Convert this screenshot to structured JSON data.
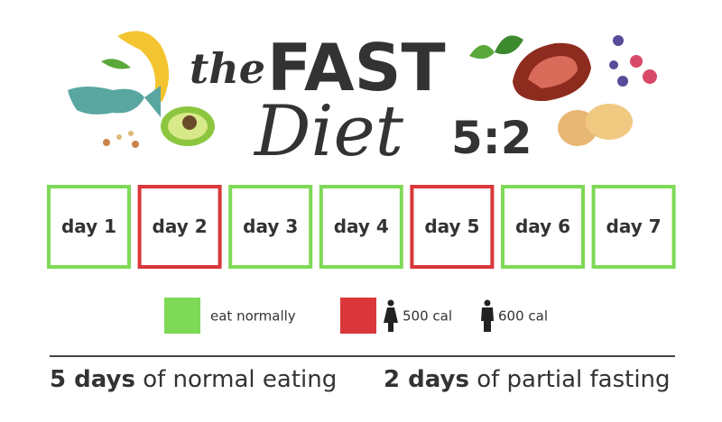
{
  "title": {
    "prefix": "the",
    "main": "FAST",
    "script": "Diet",
    "ratio": "5:2"
  },
  "days": [
    {
      "label": "day 1",
      "color": "#7ed957"
    },
    {
      "label": "day 2",
      "color": "#d9373a"
    },
    {
      "label": "day 3",
      "color": "#7ed957"
    },
    {
      "label": "day 4",
      "color": "#7ed957"
    },
    {
      "label": "day 5",
      "color": "#d9373a"
    },
    {
      "label": "day 6",
      "color": "#7ed957"
    },
    {
      "label": "day 7",
      "color": "#7ed957"
    }
  ],
  "legend": {
    "normal": {
      "label": "eat normally",
      "color": "#7ed957"
    },
    "fast": {
      "color": "#d9373a",
      "women": "500 cal",
      "men": "600 cal"
    }
  },
  "footer": {
    "left": {
      "strong": "5 days",
      "rest": "of normal eating"
    },
    "right": {
      "strong": "2 days",
      "rest": "of partial fasting"
    }
  }
}
